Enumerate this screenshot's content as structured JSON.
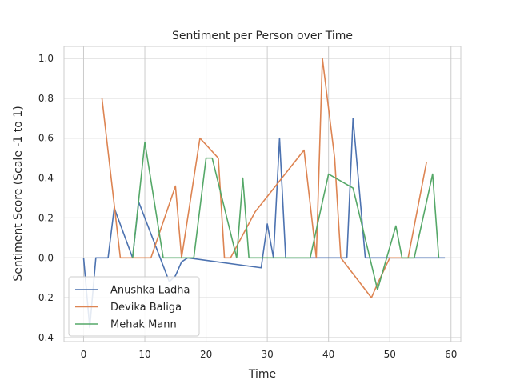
{
  "chart_data": {
    "type": "line",
    "title": "Sentiment per Person over Time",
    "xlabel": "Time",
    "ylabel": "Sentiment Score (Scale -1 to 1)",
    "xlim": [
      -3.2,
      61.6
    ],
    "ylim": [
      -0.42,
      1.06
    ],
    "xticks": [
      0,
      10,
      20,
      30,
      40,
      50,
      60
    ],
    "yticks": [
      -0.4,
      -0.2,
      0.0,
      0.2,
      0.4,
      0.6,
      0.8,
      1.0
    ],
    "grid": true,
    "legend_position": "lower-left",
    "series": [
      {
        "name": "Anushka Ladha",
        "color": "#4c72b0",
        "x": [
          0,
          1,
          2,
          4,
          5,
          8,
          9,
          14,
          15,
          16,
          17,
          29,
          30,
          31,
          32,
          33,
          35,
          39,
          43,
          44,
          46,
          59
        ],
        "y": [
          0,
          -0.35,
          0,
          0,
          0.25,
          0,
          0.28,
          -0.12,
          -0.09,
          -0.02,
          0,
          -0.05,
          0.17,
          0,
          0.6,
          0,
          0,
          0,
          0,
          0.7,
          0,
          0
        ]
      },
      {
        "name": "Devika Baliga",
        "color": "#dd8452",
        "x": [
          3,
          6,
          11,
          15,
          16,
          19,
          22,
          23,
          24,
          28,
          36,
          38,
          39,
          41,
          42,
          47,
          48,
          50,
          53,
          56
        ],
        "y": [
          0.8,
          0,
          0,
          0.36,
          0,
          0.6,
          0.5,
          0,
          0,
          0.23,
          0.54,
          0,
          1.0,
          0.5,
          0,
          -0.2,
          -0.13,
          0,
          0,
          0.48
        ]
      },
      {
        "name": "Mehak Mann",
        "color": "#55a868",
        "x": [
          8,
          10,
          13,
          18,
          20,
          21,
          25,
          26,
          27,
          34,
          37,
          40,
          44,
          48,
          51,
          52,
          54,
          57,
          58
        ],
        "y": [
          0,
          0.58,
          0,
          0,
          0.5,
          0.5,
          0,
          0.4,
          0,
          0,
          0,
          0.42,
          0.35,
          -0.16,
          0.16,
          0,
          0,
          0.42,
          0
        ]
      }
    ]
  }
}
